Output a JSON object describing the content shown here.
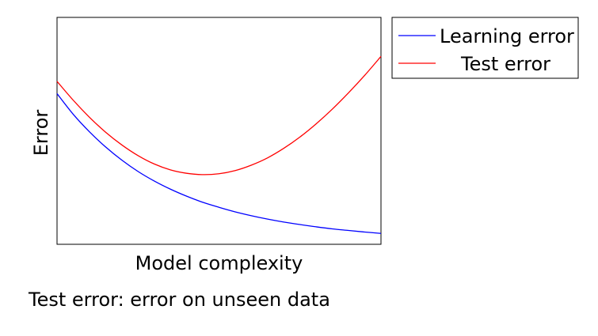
{
  "chart_data": {
    "type": "line",
    "title": "",
    "xlabel": "Model complexity",
    "ylabel": "Error",
    "xlim": [
      0,
      1
    ],
    "ylim": [
      0,
      1
    ],
    "ticks_visible": false,
    "grid": false,
    "legend_placement": "outside-top-right",
    "x": [
      0,
      0.05,
      0.1,
      0.15,
      0.2,
      0.25,
      0.3,
      0.35,
      0.4,
      0.45,
      0.5,
      0.55,
      0.6,
      0.65,
      0.7,
      0.75,
      0.8,
      0.85,
      0.9,
      0.95,
      1
    ],
    "series": [
      {
        "name": "Learning error",
        "color": "#0000ff",
        "values": [
          0.664,
          0.573,
          0.496,
          0.429,
          0.371,
          0.321,
          0.279,
          0.243,
          0.212,
          0.185,
          0.163,
          0.143,
          0.126,
          0.111,
          0.098,
          0.087,
          0.077,
          0.068,
          0.061,
          0.054,
          0.048
        ]
      },
      {
        "name": "Test error",
        "color": "#ff0000",
        "values": [
          0.718,
          0.635,
          0.56,
          0.494,
          0.438,
          0.391,
          0.354,
          0.328,
          0.313,
          0.307,
          0.311,
          0.325,
          0.349,
          0.381,
          0.423,
          0.473,
          0.531,
          0.596,
          0.668,
          0.745,
          0.828
        ]
      }
    ]
  },
  "caption": "Test error: error on unseen data"
}
